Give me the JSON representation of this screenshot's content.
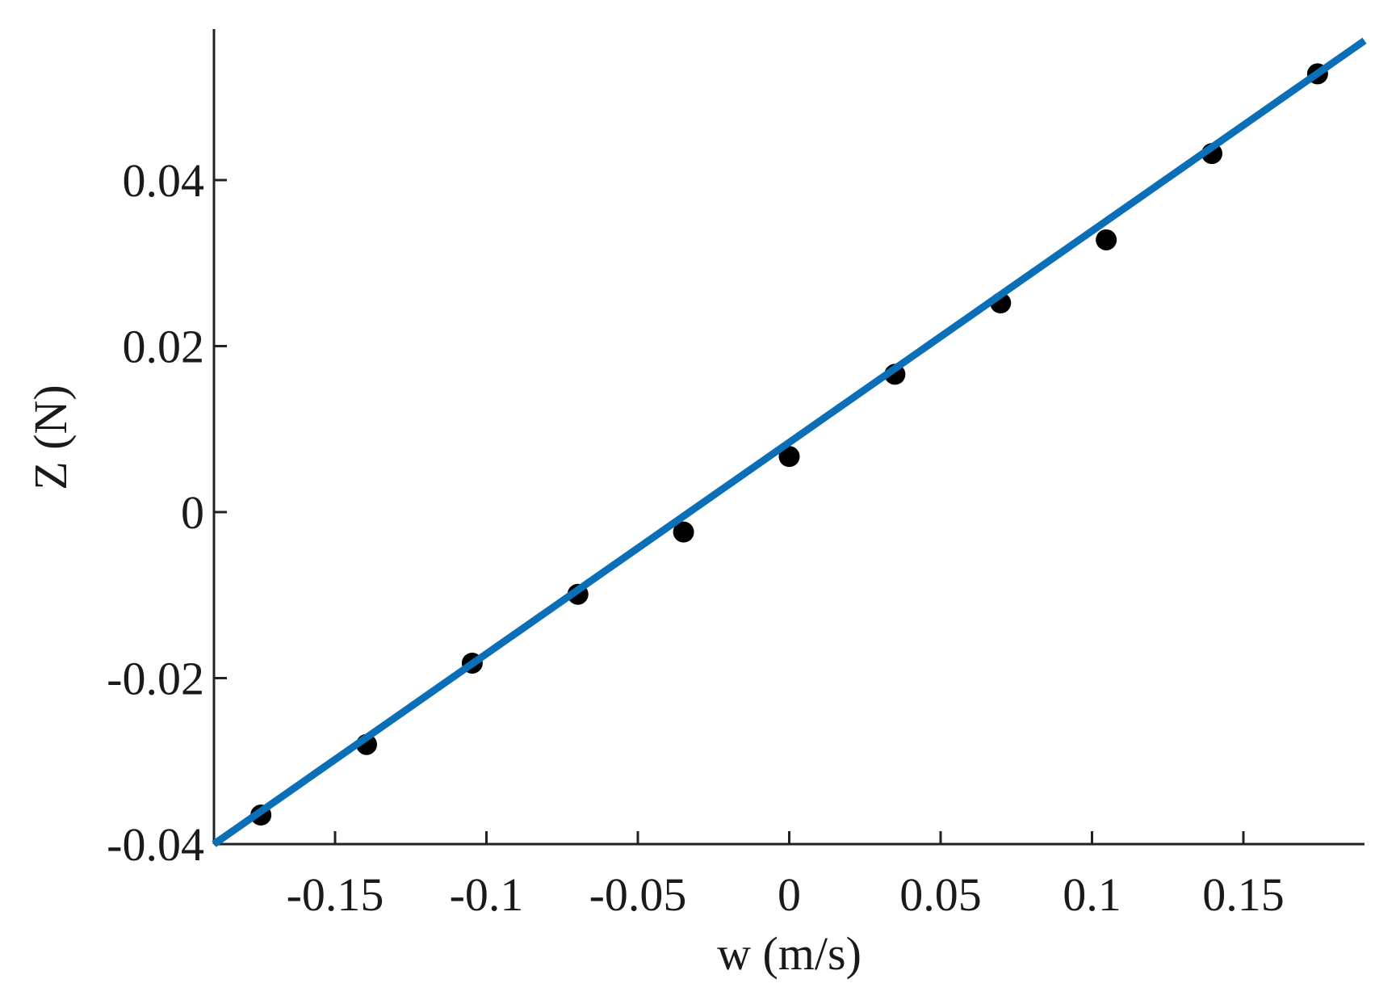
{
  "chart_data": {
    "type": "scatter",
    "title": "",
    "xlabel": "w (m/s)",
    "ylabel": "Z (N)",
    "xlim": [
      -0.19,
      0.19
    ],
    "ylim": [
      -0.04,
      0.058
    ],
    "x_ticks": [
      -0.15,
      -0.1,
      -0.05,
      0,
      0.05,
      0.1,
      0.15
    ],
    "x_tick_labels": [
      "-0.15",
      "-0.1",
      "-0.05",
      "0",
      "0.05",
      "0.1",
      "0.15"
    ],
    "y_ticks": [
      -0.04,
      -0.02,
      0,
      0.02,
      0.04
    ],
    "y_tick_labels": [
      "-0.04",
      "-0.02",
      "0",
      "0.02",
      "0.04"
    ],
    "grid": false,
    "legend": "none",
    "series": [
      {
        "kind": "points",
        "color": "#000000",
        "x": [
          -0.1745,
          -0.1396,
          -0.1047,
          -0.0698,
          -0.0349,
          0,
          0.0349,
          0.0698,
          0.1047,
          0.1396,
          0.1745
        ],
        "y": [
          -0.0365,
          -0.028,
          -0.0182,
          -0.0099,
          -0.0024,
          0.0067,
          0.0166,
          0.0252,
          0.0328,
          0.0432,
          0.0528
        ]
      },
      {
        "kind": "fit-line",
        "color": "#0b6fb8",
        "x": [
          -0.19,
          0.19
        ],
        "y": [
          -0.04,
          0.0568
        ]
      }
    ]
  }
}
